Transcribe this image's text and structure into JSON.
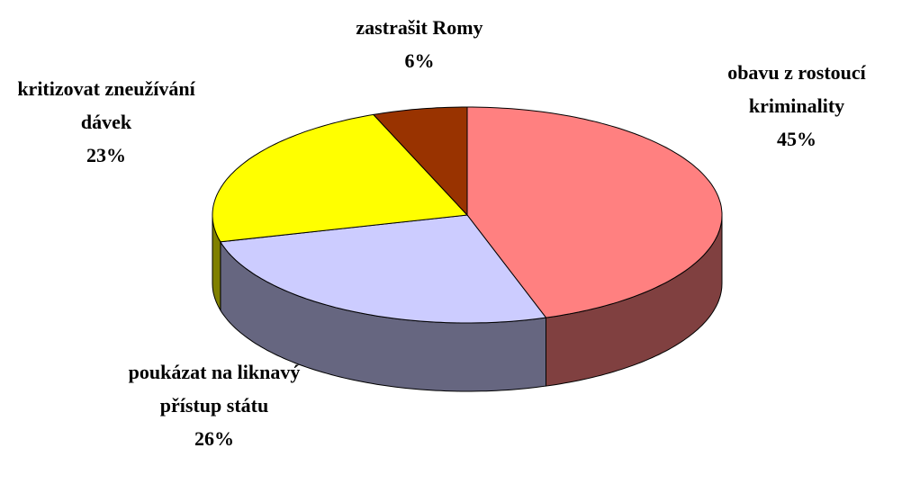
{
  "chart_data": {
    "type": "pie3d",
    "categories": [
      "obavu z rostoucí kriminality",
      "poukázat na liknavý přístup státu",
      "kritizovat zneužívání dávek",
      "zastrašit Romy"
    ],
    "values": [
      45,
      26,
      23,
      6
    ],
    "value_labels": [
      "45%",
      "26%",
      "23%",
      "6%"
    ],
    "colors": [
      "#FF8080",
      "#CCCCFF",
      "#FFFF00",
      "#993300"
    ]
  }
}
